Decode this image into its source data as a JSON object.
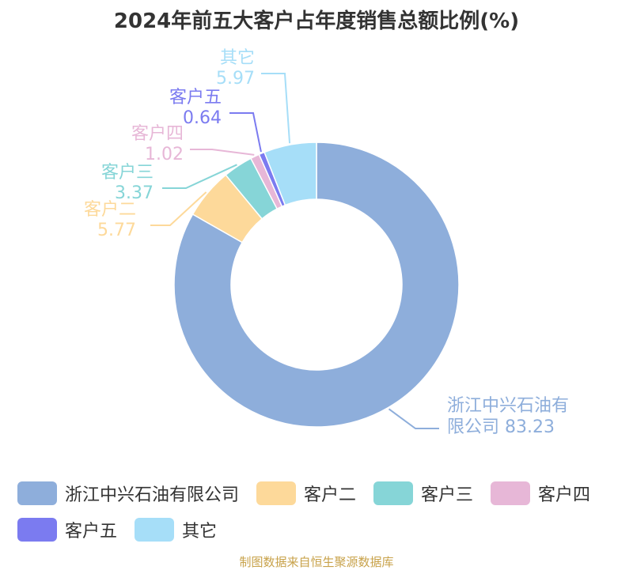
{
  "chart_data": {
    "type": "pie",
    "title": "2024年前五大客户占年度销售总额比例(%)",
    "slices": [
      {
        "label": "浙江中兴石油有限公司",
        "callout": [
          "浙江中兴石油有",
          "限公司 83.23"
        ],
        "value": 83.23,
        "color": "#8eaedb"
      },
      {
        "label": "客户二",
        "callout": [
          "客户二",
          "5.77"
        ],
        "value": 5.77,
        "color": "#fdd99a"
      },
      {
        "label": "客户三",
        "callout": [
          "客户三",
          "3.37"
        ],
        "value": 3.37,
        "color": "#86d5d7"
      },
      {
        "label": "客户四",
        "callout": [
          "客户四",
          "1.02"
        ],
        "value": 1.02,
        "color": "#e7b7d7"
      },
      {
        "label": "客户五",
        "callout": [
          "客户五",
          "0.64"
        ],
        "value": 0.64,
        "color": "#7b7bf0"
      },
      {
        "label": "其它",
        "callout": [
          "其它",
          "5.97"
        ],
        "value": 5.97,
        "color": "#a6def8"
      }
    ],
    "legend_position": "bottom"
  },
  "source_note": "制图数据来自恒生聚源数据库"
}
